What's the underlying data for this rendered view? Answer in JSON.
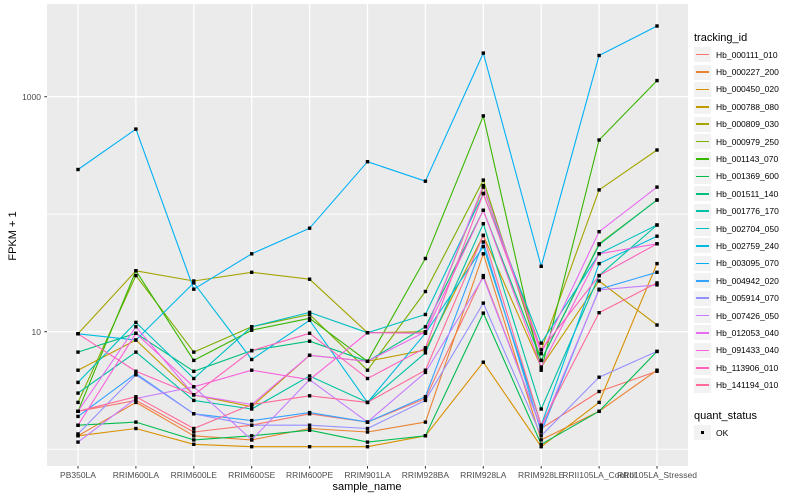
{
  "chart_data": {
    "type": "line",
    "title": "",
    "xlabel": "sample_name",
    "ylabel": "FPKM + 1",
    "y_scale": "log10",
    "ylim": [
      0.72,
      6000
    ],
    "grid": true,
    "legend_position": "right",
    "y_ticks": [
      {
        "label": "1000",
        "value": 1000
      },
      {
        "label": "10",
        "value": 10
      }
    ],
    "y_gridlines_major": [
      10,
      1000
    ],
    "y_gridlines_minor": [
      1,
      100
    ],
    "point_color": "#000000",
    "categories": [
      "PB350LA",
      "RRIM600LA",
      "RRIM600LE",
      "RRIM600SE",
      "RRIM600PE",
      "RRIM901LA",
      "RRIM928BA",
      "RRIM928LA",
      "RRIM928LE",
      "RRII105LA_Control",
      "RRII105LA_Stressed"
    ],
    "series": [
      {
        "name": "Hb_000111_010",
        "color": "#F8766D",
        "values": [
          2.1,
          2.6,
          1.4,
          1.6,
          2.0,
          1.7,
          2.7,
          30,
          1.5,
          3.1,
          4.6
        ]
      },
      {
        "name": "Hb_000227_200",
        "color": "#EA8331",
        "values": [
          1.3,
          2.5,
          1.3,
          1.2,
          1.5,
          1.4,
          1.7,
          46,
          1.2,
          2.1,
          4.7
        ]
      },
      {
        "name": "Hb_000450_020",
        "color": "#D89000",
        "values": [
          1.3,
          1.5,
          1.1,
          1.05,
          1.05,
          1.05,
          1.3,
          5.5,
          1.05,
          2.5,
          38
        ]
      },
      {
        "name": "Hb_000788_080",
        "color": "#C09B00",
        "values": [
          4.7,
          8.5,
          2.9,
          2.3,
          6.3,
          5.6,
          7.0,
          66,
          5.0,
          27,
          11.4
        ]
      },
      {
        "name": "Hb_000809_030",
        "color": "#A3A500",
        "values": [
          9.6,
          33,
          27,
          32,
          28,
          9.8,
          10,
          170,
          7.0,
          161,
          352
        ]
      },
      {
        "name": "Hb_000979_250",
        "color": "#7CAE00",
        "values": [
          2.5,
          30,
          6.7,
          11,
          14,
          4.7,
          22,
          195,
          5.7,
          56,
          132
        ]
      },
      {
        "name": "Hb_001143_070",
        "color": "#39B600",
        "values": [
          2.1,
          33,
          5.7,
          10.3,
          13,
          5.6,
          42,
          686,
          4.7,
          428,
          1370
        ]
      },
      {
        "name": "Hb_001369_600",
        "color": "#00BB4E",
        "values": [
          1.6,
          1.7,
          1.2,
          1.3,
          1.45,
          1.15,
          1.3,
          14.4,
          1.1,
          2.1,
          6.8
        ]
      },
      {
        "name": "Hb_001511_140",
        "color": "#00BF7D",
        "values": [
          6.7,
          9.7,
          4.6,
          6.9,
          8.3,
          5.6,
          11,
          108,
          5.7,
          55,
          132
        ]
      },
      {
        "name": "Hb_001776_170",
        "color": "#00C1A3",
        "values": [
          3.0,
          6.7,
          2.6,
          2.2,
          4.2,
          2.5,
          6.6,
          83,
          2.2,
          30,
          81
        ]
      },
      {
        "name": "Hb_002704_050",
        "color": "#00BFC4",
        "values": [
          3.7,
          12,
          4.0,
          11,
          14.6,
          9.8,
          14,
          150,
          8.0,
          46,
          81
        ]
      },
      {
        "name": "Hb_002759_240",
        "color": "#00BAE0",
        "values": [
          9.6,
          8.5,
          26,
          5.8,
          12.5,
          2.5,
          9.7,
          53,
          1.6,
          38,
          65
        ]
      },
      {
        "name": "Hb_003095_070",
        "color": "#00B0F6",
        "values": [
          240,
          530,
          23,
          46,
          76,
          280,
          191,
          2350,
          36,
          2240,
          4000
        ]
      },
      {
        "name": "Hb_004942_020",
        "color": "#35A2FF",
        "values": [
          1.9,
          4.4,
          2.0,
          1.75,
          2.05,
          1.7,
          2.8,
          58,
          1.4,
          23,
          32
        ]
      },
      {
        "name": "Hb_005914_070",
        "color": "#9590FF",
        "values": [
          1.35,
          4.3,
          2.0,
          1.6,
          1.6,
          1.5,
          2.6,
          17.5,
          1.3,
          4.1,
          6.8
        ]
      },
      {
        "name": "Hb_007426_050",
        "color": "#C77CFF",
        "values": [
          1.15,
          2.7,
          3.4,
          1.2,
          3.9,
          1.7,
          4.5,
          29,
          1.5,
          22.7,
          25
        ]
      },
      {
        "name": "Hb_012053_040",
        "color": "#E76BF3",
        "values": [
          2.1,
          11,
          2.9,
          2.4,
          6.3,
          5.6,
          10,
          175,
          6.5,
          71,
          170
        ]
      },
      {
        "name": "Hb_091433_040",
        "color": "#FA62DB",
        "values": [
          1.6,
          9.7,
          3.4,
          4.7,
          3.9,
          9.8,
          9.7,
          108,
          5.0,
          46,
          56
        ]
      },
      {
        "name": "Hb_113906_010",
        "color": "#FF62BC",
        "values": [
          9.6,
          4.6,
          2.9,
          6.9,
          9.7,
          4.0,
          7.3,
          150,
          7.0,
          30,
          56
        ]
      },
      {
        "name": "Hb_141194_010",
        "color": "#FF6A98",
        "values": [
          2.1,
          2.8,
          1.5,
          2.4,
          2.85,
          2.5,
          4.7,
          66,
          1.6,
          14.5,
          26
        ]
      }
    ]
  },
  "legend": {
    "tracking": {
      "title": "tracking_id"
    },
    "quant": {
      "title": "quant_status",
      "items": [
        {
          "label": "OK"
        }
      ]
    }
  },
  "style_colors": {
    "panel_bg": "#EBEBEB",
    "gridline": "#FFFFFF",
    "tick_mark": "#333333",
    "axis_text": "#4D4D4D",
    "title_text": "#000000",
    "legend_key_bg": "#F2F2F2",
    "point": "#000000"
  }
}
